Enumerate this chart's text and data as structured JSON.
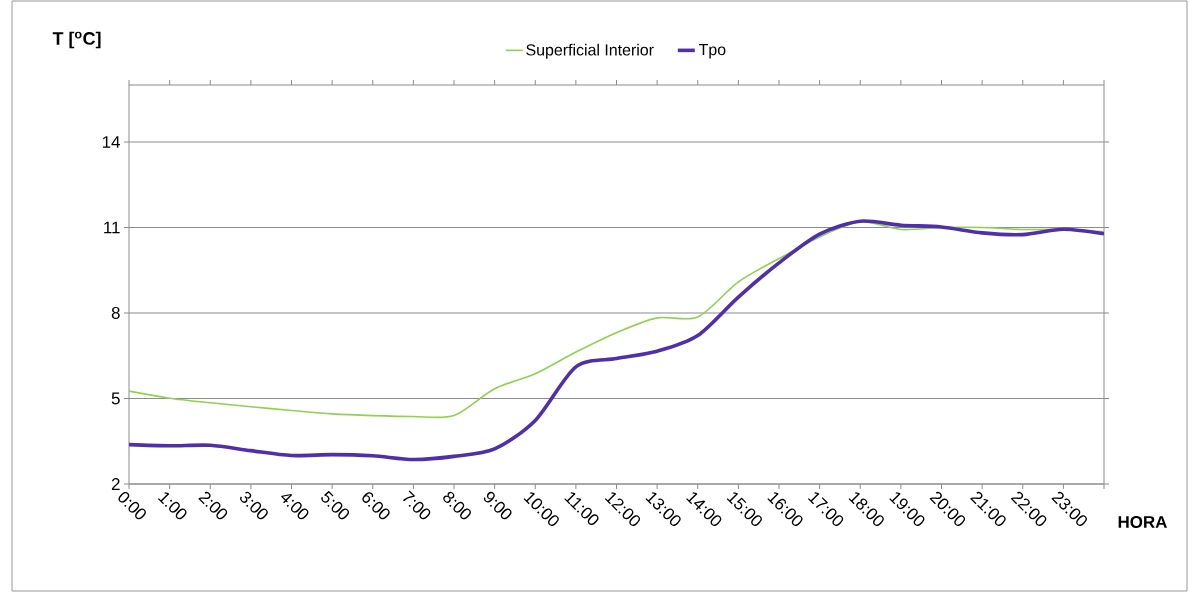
{
  "chart_data": {
    "type": "line",
    "xlabel": "HORA",
    "ylabel": "T [$^{o}$C]",
    "categories": [
      "0:00",
      "1:00",
      "2:00",
      "3:00",
      "4:00",
      "5:00",
      "6:00",
      "7:00",
      "8:00",
      "9:00",
      "10:00",
      "11:00",
      "12:00",
      "13:00",
      "14:00",
      "15:00",
      "16:00",
      "17:00",
      "18:00",
      "19:00",
      "20:00",
      "21:00",
      "22:00",
      "23:00",
      null
    ],
    "series": [
      {
        "name": "Superficial Interior",
        "color": "#92d050",
        "values": [
          5.26,
          5.01,
          4.85,
          4.71,
          4.58,
          4.46,
          4.4,
          4.37,
          4.4,
          5.34,
          5.87,
          6.63,
          7.31,
          7.83,
          7.86,
          9.09,
          9.91,
          10.67,
          11.2,
          10.93,
          11.0,
          11.0,
          10.93,
          10.93,
          10.85
        ]
      },
      {
        "name": "Tpo",
        "color": "#4f2faa",
        "values": [
          3.38,
          3.34,
          3.36,
          3.17,
          3.0,
          3.03,
          2.99,
          2.86,
          2.97,
          3.23,
          4.23,
          6.11,
          6.4,
          6.66,
          7.21,
          8.56,
          9.76,
          10.77,
          11.22,
          11.08,
          11.02,
          10.81,
          10.75,
          10.94,
          10.78
        ]
      }
    ],
    "ylim": [
      2,
      16
    ],
    "yticks": [
      2,
      5,
      8,
      11,
      14
    ],
    "grid": "y",
    "legend": "top",
    "line_style": "solid",
    "marker": "none"
  }
}
